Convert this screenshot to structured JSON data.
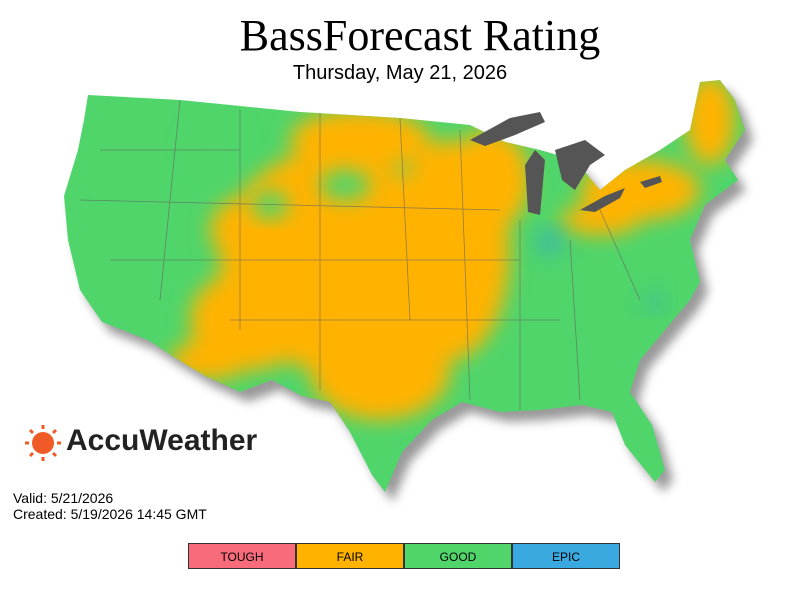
{
  "header": {
    "title": "BassForecast Rating",
    "subtitle": "Thursday, May 21, 2026"
  },
  "brand": {
    "name": "AccuWeather"
  },
  "info": {
    "valid": "Valid: 5/21/2026",
    "created": "Created: 5/19/2026 14:45 GMT"
  },
  "legend": {
    "items": [
      {
        "label": "TOUGH",
        "color": "#f76b7b"
      },
      {
        "label": "FAIR",
        "color": "#ffb300"
      },
      {
        "label": "GOOD",
        "color": "#4fd56a"
      },
      {
        "label": "EPIC",
        "color": "#3aa9e0"
      }
    ]
  }
}
